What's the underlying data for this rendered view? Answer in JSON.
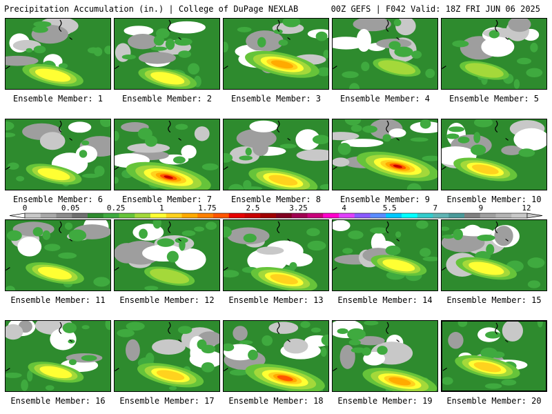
{
  "header": {
    "left_title": "Precipitation Accumulation (in.) | College of DuPage NEXLAB",
    "right_title": "00Z GEFS | F042 Valid: 18Z FRI JUN 06 2025"
  },
  "panels": [
    {
      "label": "Ensemble Member: 1",
      "intensity": 0.4
    },
    {
      "label": "Ensemble Member: 2",
      "intensity": 0.35
    },
    {
      "label": "Ensemble Member: 3",
      "intensity": 0.65
    },
    {
      "label": "Ensemble Member: 4",
      "intensity": 0.15
    },
    {
      "label": "Ensemble Member: 5",
      "intensity": 0.18
    },
    {
      "label": "Ensemble Member: 6",
      "intensity": 0.3
    },
    {
      "label": "Ensemble Member: 7",
      "intensity": 0.85
    },
    {
      "label": "Ensemble Member: 8",
      "intensity": 0.55
    },
    {
      "label": "Ensemble Member: 9",
      "intensity": 0.8
    },
    {
      "label": "Ensemble Member: 10",
      "intensity": 0.45
    },
    {
      "label": "Ensemble Member: 11",
      "intensity": 0.35
    },
    {
      "label": "Ensemble Member: 12",
      "intensity": 0.2
    },
    {
      "label": "Ensemble Member: 13",
      "intensity": 0.5
    },
    {
      "label": "Ensemble Member: 14",
      "intensity": 0.3
    },
    {
      "label": "Ensemble Member: 15",
      "intensity": 0.4
    },
    {
      "label": "Ensemble Member: 16",
      "intensity": 0.3
    },
    {
      "label": "Ensemble Member: 17",
      "intensity": 0.5
    },
    {
      "label": "Ensemble Member: 18",
      "intensity": 0.75
    },
    {
      "label": "Ensemble Member: 19",
      "intensity": 0.65
    },
    {
      "label": "Ensemble Member: 20",
      "intensity": 0.5
    }
  ],
  "selected_panel": "Ensemble Member: 20",
  "colorbar": {
    "tick_labels": [
      "0",
      "0.05",
      "0.25",
      "1",
      "1.75",
      "2.5",
      "3.25",
      "4",
      "5.5",
      "7",
      "9",
      "12"
    ],
    "colors": [
      "#c8c8c8",
      "#a9a9a9",
      "#8c8c8c",
      "#707070",
      "#2e8b2e",
      "#3faa3f",
      "#66c43a",
      "#a4d93a",
      "#ffff33",
      "#ffd21e",
      "#ffaa00",
      "#ff8000",
      "#ff5500",
      "#e60000",
      "#c80000",
      "#a00000",
      "#800020",
      "#a00050",
      "#c8007a",
      "#ff00cc",
      "#e040fb",
      "#8a5aff",
      "#5a8cff",
      "#00c8ff",
      "#00ffff",
      "#33cccc",
      "#5fb4b4",
      "#4a9a9a",
      "#808080",
      "#a0a0a0",
      "#b4b4b4",
      "#c8c8c8"
    ]
  }
}
